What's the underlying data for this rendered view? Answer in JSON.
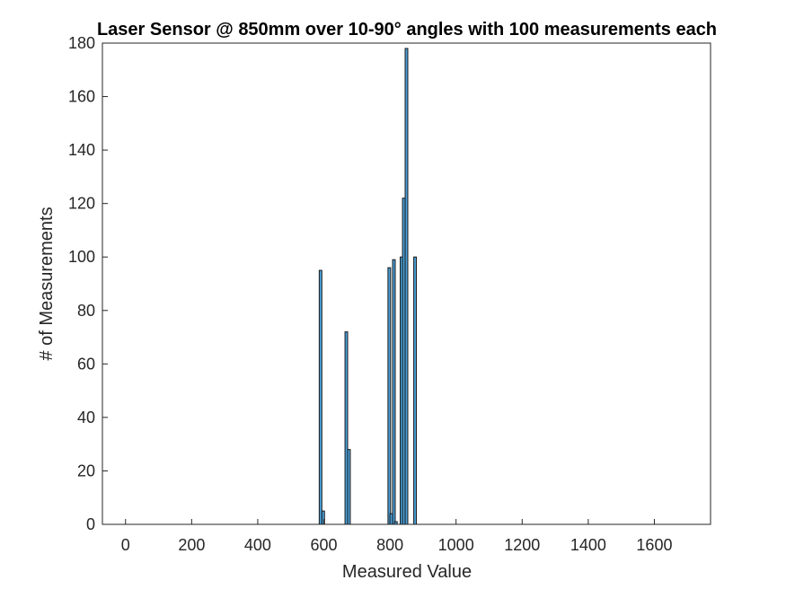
{
  "chart_data": {
    "type": "bar",
    "title": "Laser Sensor @ 850mm over 10-90° angles with 100 measurements each",
    "xlabel": "Measured Value",
    "ylabel": "# of Measurements",
    "xlim": [
      -70,
      1770
    ],
    "ylim": [
      0,
      180
    ],
    "xticks": [
      0,
      200,
      400,
      600,
      800,
      1000,
      1200,
      1400,
      1600
    ],
    "yticks": [
      0,
      20,
      40,
      60,
      80,
      100,
      120,
      140,
      160,
      180
    ],
    "bin_width": 8,
    "x": [
      590,
      598,
      668,
      676,
      798,
      804,
      812,
      818,
      835,
      842,
      850,
      876
    ],
    "values": [
      95,
      5,
      72,
      28,
      96,
      4,
      99,
      1,
      100,
      122,
      178,
      100
    ],
    "baseline_range": [
      0,
      1700
    ],
    "bar_color": "#4a9fd8",
    "grid": false
  }
}
